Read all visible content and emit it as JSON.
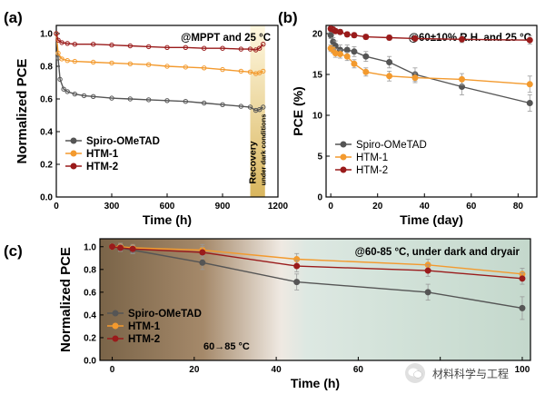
{
  "watermark": "材料科学与工程",
  "chart_data": [
    {
      "panel": "(a)",
      "type": "line",
      "annotation": "@MPPT and 25 °C",
      "region_label": "Recovery",
      "region_sublabel": "under dark conditions",
      "region_x": [
        1050,
        1130
      ],
      "region_color": "#d9b65e",
      "xlabel": "Time (h)",
      "ylabel": "Normalized PCE",
      "xlim": [
        0,
        1200
      ],
      "ylim": [
        0,
        1.05
      ],
      "xticks": [
        0,
        300,
        600,
        900,
        1200
      ],
      "yticks": [
        0.0,
        0.2,
        0.4,
        0.6,
        0.8,
        1.0
      ],
      "ytick_labels": [
        "0.0",
        "0.2",
        "0.4",
        "0.6",
        "0.8",
        "1.0"
      ],
      "legend": "bottom-left",
      "series": [
        {
          "name": "Spiro-OMeTAD",
          "color": "#555555",
          "x": [
            0,
            10,
            20,
            40,
            60,
            100,
            150,
            200,
            300,
            400,
            500,
            600,
            700,
            800,
            900,
            1000,
            1050,
            1080,
            1100,
            1120
          ],
          "y": [
            1.0,
            0.85,
            0.72,
            0.66,
            0.645,
            0.63,
            0.62,
            0.615,
            0.605,
            0.6,
            0.595,
            0.59,
            0.585,
            0.575,
            0.565,
            0.555,
            0.55,
            0.53,
            0.535,
            0.55
          ]
        },
        {
          "name": "HTM-1",
          "color": "#f39a2e",
          "x": [
            0,
            10,
            30,
            60,
            100,
            200,
            300,
            400,
            500,
            600,
            700,
            800,
            900,
            1000,
            1050,
            1080,
            1100,
            1120
          ],
          "y": [
            1.0,
            0.88,
            0.845,
            0.835,
            0.83,
            0.825,
            0.82,
            0.815,
            0.81,
            0.8,
            0.795,
            0.79,
            0.78,
            0.77,
            0.765,
            0.755,
            0.76,
            0.77
          ]
        },
        {
          "name": "HTM-2",
          "color": "#9a1b1b",
          "x": [
            0,
            10,
            30,
            60,
            100,
            200,
            300,
            400,
            500,
            600,
            700,
            800,
            900,
            1000,
            1050,
            1080,
            1100,
            1120
          ],
          "y": [
            1.0,
            0.96,
            0.945,
            0.94,
            0.935,
            0.935,
            0.93,
            0.925,
            0.92,
            0.915,
            0.915,
            0.91,
            0.91,
            0.905,
            0.905,
            0.9,
            0.91,
            0.935
          ]
        }
      ]
    },
    {
      "panel": "(b)",
      "type": "line",
      "annotation": "@60±10% R.H. and 25 °C",
      "xlabel": "Time (day)",
      "ylabel": "PCE (%)",
      "xlim": [
        -2,
        88
      ],
      "ylim": [
        0,
        21
      ],
      "xticks": [
        0,
        20,
        40,
        60,
        80
      ],
      "yticks": [
        0,
        5,
        10,
        15,
        20
      ],
      "legend": "bottom-left",
      "series": [
        {
          "name": "Spiro-OMeTAD",
          "color": "#555555",
          "x": [
            0,
            1,
            2,
            4,
            7,
            10,
            15,
            25,
            36,
            56,
            85
          ],
          "y": [
            19.8,
            19.0,
            18.5,
            18.0,
            18.0,
            17.8,
            17.2,
            16.5,
            15.0,
            13.5,
            11.5
          ],
          "err": [
            0.4,
            0.5,
            0.6,
            0.6,
            0.6,
            0.6,
            0.6,
            0.7,
            0.8,
            1.0,
            1.0
          ]
        },
        {
          "name": "HTM-1",
          "color": "#f39a2e",
          "x": [
            0,
            1,
            2,
            4,
            7,
            10,
            15,
            25,
            36,
            56,
            85
          ],
          "y": [
            18.2,
            18.0,
            17.6,
            17.5,
            17.2,
            16.3,
            15.3,
            14.8,
            14.6,
            14.4,
            13.8
          ],
          "err": [
            0.4,
            0.4,
            0.5,
            0.5,
            0.5,
            0.5,
            0.5,
            0.6,
            0.6,
            0.7,
            1.0
          ]
        },
        {
          "name": "HTM-2",
          "color": "#9a1b1b",
          "x": [
            0,
            1,
            2,
            4,
            7,
            10,
            15,
            25,
            36,
            56,
            85
          ],
          "y": [
            20.6,
            20.5,
            20.3,
            20.2,
            19.9,
            19.8,
            19.6,
            19.5,
            19.4,
            19.3,
            19.2
          ],
          "err": [
            0.3,
            0.3,
            0.3,
            0.3,
            0.3,
            0.3,
            0.3,
            0.3,
            0.3,
            0.4,
            0.5
          ]
        }
      ]
    },
    {
      "panel": "(c)",
      "type": "line",
      "annotation": "@60-85 °C, under dark and dryair",
      "temp_label": "60→85 °C",
      "transition_x": [
        0,
        25
      ],
      "xlabel": "Time (h)",
      "ylabel": "Normalized PCE",
      "xlim": [
        -3,
        102
      ],
      "ylim": [
        0,
        1.07
      ],
      "xticks": [
        0,
        20,
        40,
        60,
        80,
        100
      ],
      "xtick_labels": [
        "0",
        "20",
        "40",
        "60",
        "",
        "100"
      ],
      "yticks": [
        0.0,
        0.2,
        0.4,
        0.6,
        0.8,
        1.0
      ],
      "ytick_labels": [
        "0.0",
        "0.2",
        "0.4",
        "0.6",
        "0.8",
        "1.0"
      ],
      "legend": "bottom-left",
      "series": [
        {
          "name": "Spiro-OMeTAD",
          "color": "#555555",
          "x": [
            0,
            2,
            5,
            22,
            45,
            77,
            100
          ],
          "y": [
            1.0,
            0.99,
            0.97,
            0.86,
            0.69,
            0.6,
            0.46
          ],
          "err": [
            0.02,
            0.03,
            0.03,
            0.06,
            0.07,
            0.07,
            0.1
          ]
        },
        {
          "name": "HTM-1",
          "color": "#f39a2e",
          "x": [
            0,
            2,
            5,
            22,
            45,
            77,
            100
          ],
          "y": [
            1.0,
            1.0,
            0.99,
            0.97,
            0.89,
            0.84,
            0.76
          ],
          "err": [
            0.02,
            0.03,
            0.03,
            0.05,
            0.05,
            0.05,
            0.05
          ]
        },
        {
          "name": "HTM-2",
          "color": "#9a1b1b",
          "x": [
            0,
            2,
            5,
            22,
            45,
            77,
            100
          ],
          "y": [
            1.0,
            0.99,
            0.98,
            0.95,
            0.83,
            0.79,
            0.72
          ],
          "err": [
            0.02,
            0.03,
            0.03,
            0.05,
            0.05,
            0.05,
            0.05
          ]
        }
      ]
    }
  ]
}
